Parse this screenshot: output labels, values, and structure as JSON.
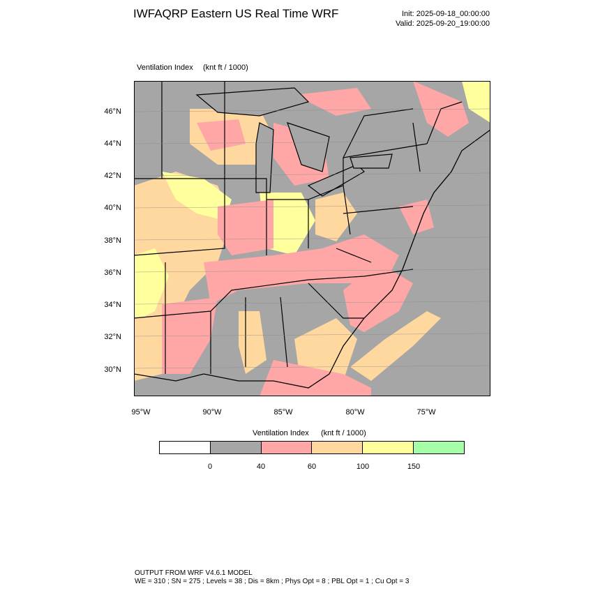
{
  "header": {
    "title": "IWFAQRP Eastern US Real Time WRF",
    "init": "Init: 2025-09-18_00:00:00",
    "valid": "Valid: 2025-09-20_19:00:00"
  },
  "field": {
    "label": "Ventilation Index",
    "units": "(knt ft / 1000)"
  },
  "map": {
    "lat_labels": [
      "46°N",
      "44°N",
      "42°N",
      "40°N",
      "38°N",
      "36°N",
      "34°N",
      "32°N",
      "30°N"
    ],
    "lon_labels": [
      "95°W",
      "90°W",
      "85°W",
      "80°W",
      "75°W"
    ],
    "colors": {
      "gray": "#a6a6a6",
      "pink": "#ffa6a6",
      "orange": "#ffd8a0",
      "yellow": "#ffff9e",
      "border": "#000000"
    }
  },
  "legend": {
    "title": "Ventilation Index",
    "units": "(knt ft / 1000)",
    "colors": [
      "#ffffff",
      "#a6a6a6",
      "#ffa6a6",
      "#ffd8a0",
      "#ffff9e",
      "#a6ffa6"
    ],
    "tick_labels": [
      "0",
      "40",
      "60",
      "100",
      "150"
    ]
  },
  "footer": {
    "line1": "OUTPUT FROM WRF V4.6.1 MODEL",
    "line2": "WE = 310 ; SN = 275 ; Levels = 38 ; Dis = 8km ; Phys Opt = 8 ; PBL Opt = 1 ; Cu Opt = 3"
  }
}
